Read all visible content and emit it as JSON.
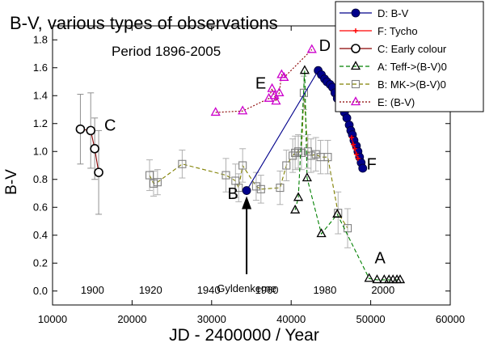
{
  "chart_data": {
    "type": "scatter",
    "title": "B-V, various types of observations",
    "subtitle": "Period 1896-2005",
    "xlabel": "JD - 2400000 /  Year",
    "ylabel": "B-V",
    "xlim": [
      10000,
      60000
    ],
    "ylim": [
      -0.1,
      1.9
    ],
    "x_ticks": [
      "10000",
      "20000",
      "30000",
      "40000",
      "50000",
      "60000"
    ],
    "y_ticks": [
      "0.0",
      "0.2",
      "0.4",
      "0.6",
      "0.8",
      "1.0",
      "1.2",
      "1.4",
      "1.6",
      "1.8"
    ],
    "year_ticks": [
      {
        "label": "1900",
        "jd": 15020
      },
      {
        "label": "1920",
        "jd": 22325
      },
      {
        "label": "1940",
        "jd": 29630
      },
      {
        "label": "1960",
        "jd": 36935
      },
      {
        "label": "1980",
        "jd": 44240
      },
      {
        "label": "2000",
        "jd": 51545
      }
    ],
    "legend_position": "top-right",
    "annotations": [
      {
        "text": "C",
        "x": 16500,
        "y": 1.15
      },
      {
        "text": "D",
        "x": 43500,
        "y": 1.72
      },
      {
        "text": "E",
        "x": 35500,
        "y": 1.45
      },
      {
        "text": "F",
        "x": 49500,
        "y": 0.87
      },
      {
        "text": "B",
        "x": 32000,
        "y": 0.66
      },
      {
        "text": "A",
        "x": 50500,
        "y": 0.2
      }
    ],
    "arrow": {
      "label": "Gyldenkerne",
      "x": 34400,
      "from_y": 0.12,
      "to_y": 0.68
    },
    "series": [
      {
        "name": "D: B-V",
        "legend_label": "D: B-V",
        "style": "filled-circle",
        "color": "#00008b",
        "connect": true,
        "points": [
          [
            34400,
            0.72
          ],
          [
            43400,
            1.58
          ],
          [
            43800,
            1.55
          ],
          [
            44200,
            1.52
          ],
          [
            44500,
            1.5
          ],
          [
            44900,
            1.48
          ],
          [
            45200,
            1.46
          ],
          [
            45500,
            1.42
          ],
          [
            45800,
            1.38
          ],
          [
            46100,
            1.35
          ],
          [
            46400,
            1.32
          ],
          [
            46700,
            1.28
          ],
          [
            47000,
            1.24
          ],
          [
            47300,
            1.19
          ],
          [
            47500,
            1.15
          ],
          [
            47700,
            1.12
          ],
          [
            47900,
            1.08
          ],
          [
            48200,
            1.04
          ],
          [
            48400,
            1.0
          ],
          [
            48600,
            0.96
          ],
          [
            48800,
            0.92
          ],
          [
            49000,
            0.88
          ]
        ]
      },
      {
        "name": "F: Tycho",
        "legend_label": "F: Tycho",
        "style": "plus",
        "color": "#ff0000",
        "connect": true,
        "points": [
          [
            47600,
            1.1
          ],
          [
            47800,
            1.05
          ],
          [
            48000,
            1.02
          ],
          [
            48200,
            0.98
          ],
          [
            48400,
            0.95
          ]
        ]
      },
      {
        "name": "C: Early colour",
        "legend_label": "C: Early colour",
        "style": "open-circle",
        "color": "#000000",
        "line_color": "#8b0000",
        "connect": true,
        "points": [
          [
            13500,
            1.16
          ],
          [
            14800,
            1.15
          ],
          [
            15300,
            1.02
          ],
          [
            15800,
            0.85
          ]
        ],
        "errors": [
          0.25,
          0.27,
          0.22,
          0.3
        ]
      },
      {
        "name": "A: Teff->(B-V)0",
        "legend_label": "A: Teff->(B-V)0",
        "style": "open-triangle",
        "color": "#000000",
        "line_color": "#008000",
        "connect": true,
        "points": [
          [
            40500,
            0.58
          ],
          [
            40900,
            0.67
          ],
          [
            41700,
            1.58
          ],
          [
            42000,
            0.81
          ],
          [
            43800,
            0.41
          ],
          [
            45800,
            0.55
          ],
          [
            49800,
            0.09
          ],
          [
            50800,
            0.08
          ],
          [
            51700,
            0.08
          ],
          [
            52300,
            0.08
          ],
          [
            52800,
            0.08
          ],
          [
            53300,
            0.08
          ],
          [
            53700,
            0.08
          ]
        ]
      },
      {
        "name": "B: MK->(B-V)0",
        "legend_label": "B: MK->(B-V)0",
        "style": "open-square",
        "color": "#808080",
        "line_color": "#808000",
        "connect": true,
        "points": [
          [
            22200,
            0.83
          ],
          [
            22700,
            0.77
          ],
          [
            23200,
            0.78
          ],
          [
            26300,
            0.91
          ],
          [
            31800,
            0.83
          ],
          [
            33000,
            0.79
          ],
          [
            33400,
            0.74
          ],
          [
            33900,
            0.9
          ],
          [
            35600,
            0.75
          ],
          [
            36200,
            0.73
          ],
          [
            38600,
            0.74
          ],
          [
            39400,
            0.9
          ],
          [
            40200,
            0.97
          ],
          [
            40500,
            0.99
          ],
          [
            40900,
            1.0
          ],
          [
            41300,
            0.99
          ],
          [
            41600,
            1.42
          ],
          [
            42100,
            1.0
          ],
          [
            42500,
            0.97
          ],
          [
            43100,
            0.98
          ],
          [
            43700,
            0.96
          ],
          [
            44600,
            0.96
          ],
          [
            45900,
            0.56
          ],
          [
            47100,
            0.45
          ]
        ],
        "errors": [
          0.11,
          0.09,
          0.09,
          0.1,
          0.12,
          0.12,
          0.1,
          0.12,
          0.1,
          0.1,
          0.12,
          0.11,
          0.12,
          0.12,
          0.12,
          0.12,
          0.12,
          0.12,
          0.12,
          0.12,
          0.12,
          0.12,
          0.15,
          0.14
        ]
      },
      {
        "name": "E: (B-V)",
        "legend_label": "E: (B-V)",
        "style": "open-triangle",
        "color": "#cc00cc",
        "line_color": "#8b0000",
        "connect": true,
        "points": [
          [
            30500,
            1.28
          ],
          [
            33900,
            1.29
          ],
          [
            37200,
            1.38
          ],
          [
            37600,
            1.45
          ],
          [
            37900,
            1.4
          ],
          [
            38100,
            1.36
          ],
          [
            38500,
            1.42
          ],
          [
            38800,
            1.55
          ],
          [
            39100,
            1.53
          ],
          [
            42600,
            1.73
          ]
        ]
      }
    ]
  }
}
